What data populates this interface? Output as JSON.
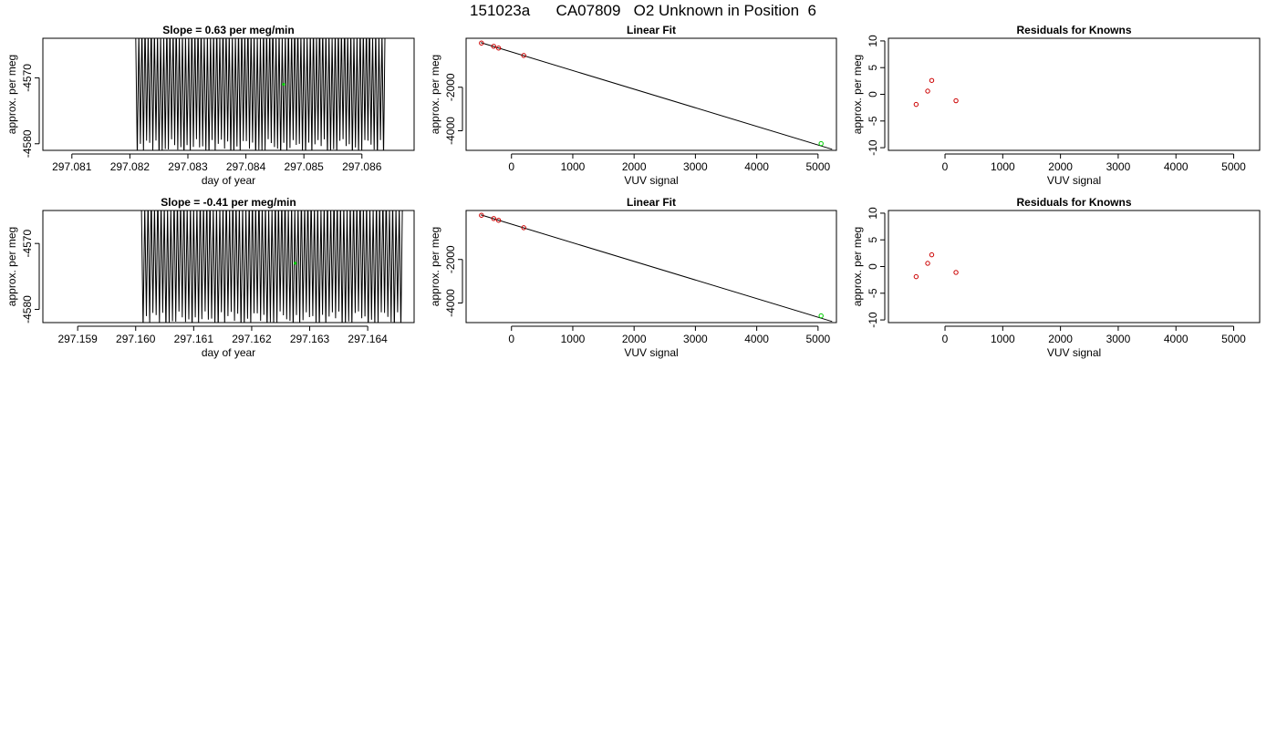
{
  "page_title": "151023a      CA07809   O2 Unknown in Position  6",
  "colors": {
    "axis": "#000000",
    "trace": "#000000",
    "known_points": "#cc0000",
    "unknown_point": "#00cc00",
    "fit_line": "#000000"
  },
  "chart_data": [
    {
      "type": "line",
      "title": "Slope =  0.63  per meg/min",
      "xlabel": "day of year",
      "ylabel": "approx. per meg",
      "xlim": [
        297.0805,
        297.0869
      ],
      "ylim": [
        -4581,
        -4564
      ],
      "x_ticks": [
        {
          "value": 297.081,
          "label": "297.081"
        },
        {
          "value": 297.082,
          "label": "297.082"
        },
        {
          "value": 297.083,
          "label": "297.083"
        },
        {
          "value": 297.084,
          "label": "297.084"
        },
        {
          "value": 297.085,
          "label": "297.085"
        },
        {
          "value": 297.086,
          "label": "297.086"
        }
      ],
      "y_ticks": [
        {
          "value": -4570,
          "label": "-4570"
        },
        {
          "value": -4580,
          "label": "-4580"
        }
      ],
      "trace": {
        "x_start": 297.0821,
        "x_end": 297.0864,
        "center": -4571.5,
        "amplitude": 9.5,
        "cycles": 80
      },
      "highlight_points": [
        {
          "x": 297.08465,
          "y": -4571.0
        }
      ]
    },
    {
      "type": "scatter",
      "title": "Linear Fit",
      "xlabel": "VUV signal",
      "ylabel": "approx. per meg",
      "xlim": [
        -740,
        5300
      ],
      "ylim": [
        -4900,
        250
      ],
      "x_ticks": [
        {
          "value": 0,
          "label": "0"
        },
        {
          "value": 1000,
          "label": "1000"
        },
        {
          "value": 2000,
          "label": "2000"
        },
        {
          "value": 3000,
          "label": "3000"
        },
        {
          "value": 4000,
          "label": "4000"
        },
        {
          "value": 5000,
          "label": "5000"
        }
      ],
      "y_ticks": [
        {
          "value": -2000,
          "label": "-2000"
        },
        {
          "value": -4000,
          "label": "-4000"
        }
      ],
      "fit_line": [
        [
          -500,
          50
        ],
        [
          5230,
          -4850
        ]
      ],
      "known_points": [
        {
          "x": -490,
          "y": 30
        },
        {
          "x": -290,
          "y": -120
        },
        {
          "x": -210,
          "y": -200
        },
        {
          "x": 200,
          "y": -540
        }
      ],
      "unknown_points": [
        {
          "x": 5050,
          "y": -4590
        }
      ]
    },
    {
      "type": "scatter",
      "title": "Residuals for Knowns",
      "xlabel": "VUV signal",
      "ylabel": "approx. per meg",
      "xlim": [
        -980,
        5450
      ],
      "ylim": [
        -10.5,
        10.5
      ],
      "x_ticks": [
        {
          "value": 0,
          "label": "0"
        },
        {
          "value": 1000,
          "label": "1000"
        },
        {
          "value": 2000,
          "label": "2000"
        },
        {
          "value": 3000,
          "label": "3000"
        },
        {
          "value": 4000,
          "label": "4000"
        },
        {
          "value": 5000,
          "label": "5000"
        }
      ],
      "y_ticks": [
        {
          "value": 10,
          "label": "10"
        },
        {
          "value": 5,
          "label": "5"
        },
        {
          "value": 0,
          "label": "0"
        },
        {
          "value": -5,
          "label": "-5"
        },
        {
          "value": -10,
          "label": "-10"
        }
      ],
      "known_points": [
        {
          "x": -500,
          "y": -1.9
        },
        {
          "x": -300,
          "y": 0.6
        },
        {
          "x": -230,
          "y": 2.6
        },
        {
          "x": 190,
          "y": -1.2
        }
      ]
    },
    {
      "type": "line",
      "title": "Slope =  -0.41  per meg/min",
      "xlabel": "day of year",
      "ylabel": "approx. per meg",
      "xlim": [
        297.1584,
        297.1648
      ],
      "ylim": [
        -4582,
        -4565
      ],
      "x_ticks": [
        {
          "value": 297.159,
          "label": "297.159"
        },
        {
          "value": 297.16,
          "label": "297.160"
        },
        {
          "value": 297.161,
          "label": "297.161"
        },
        {
          "value": 297.162,
          "label": "297.162"
        },
        {
          "value": 297.163,
          "label": "297.163"
        },
        {
          "value": 297.164,
          "label": "297.164"
        }
      ],
      "y_ticks": [
        {
          "value": -4570,
          "label": "-4570"
        },
        {
          "value": -4580,
          "label": "-4580"
        }
      ],
      "trace": {
        "x_start": 297.1601,
        "x_end": 297.1646,
        "center": -4572.5,
        "amplitude": 9.5,
        "cycles": 80
      },
      "highlight_points": [
        {
          "x": 297.16275,
          "y": -4573.0
        }
      ]
    },
    {
      "type": "scatter",
      "title": "Linear Fit",
      "xlabel": "VUV signal",
      "ylabel": "approx. per meg",
      "xlim": [
        -740,
        5300
      ],
      "ylim": [
        -4900,
        250
      ],
      "x_ticks": [
        {
          "value": 0,
          "label": "0"
        },
        {
          "value": 1000,
          "label": "1000"
        },
        {
          "value": 2000,
          "label": "2000"
        },
        {
          "value": 3000,
          "label": "3000"
        },
        {
          "value": 4000,
          "label": "4000"
        },
        {
          "value": 5000,
          "label": "5000"
        }
      ],
      "y_ticks": [
        {
          "value": -2000,
          "label": "-2000"
        },
        {
          "value": -4000,
          "label": "-4000"
        }
      ],
      "fit_line": [
        [
          -500,
          50
        ],
        [
          5230,
          -4850
        ]
      ],
      "known_points": [
        {
          "x": -490,
          "y": 30
        },
        {
          "x": -290,
          "y": -120
        },
        {
          "x": -210,
          "y": -200
        },
        {
          "x": 200,
          "y": -540
        }
      ],
      "unknown_points": [
        {
          "x": 5050,
          "y": -4590
        }
      ]
    },
    {
      "type": "scatter",
      "title": "Residuals for Knowns",
      "xlabel": "VUV signal",
      "ylabel": "approx. per meg",
      "xlim": [
        -980,
        5450
      ],
      "ylim": [
        -10.5,
        10.5
      ],
      "x_ticks": [
        {
          "value": 0,
          "label": "0"
        },
        {
          "value": 1000,
          "label": "1000"
        },
        {
          "value": 2000,
          "label": "2000"
        },
        {
          "value": 3000,
          "label": "3000"
        },
        {
          "value": 4000,
          "label": "4000"
        },
        {
          "value": 5000,
          "label": "5000"
        }
      ],
      "y_ticks": [
        {
          "value": 10,
          "label": "10"
        },
        {
          "value": 5,
          "label": "5"
        },
        {
          "value": 0,
          "label": "0"
        },
        {
          "value": -5,
          "label": "-5"
        },
        {
          "value": -10,
          "label": "-10"
        }
      ],
      "known_points": [
        {
          "x": -500,
          "y": -1.9
        },
        {
          "x": -300,
          "y": 0.6
        },
        {
          "x": -230,
          "y": 2.2
        },
        {
          "x": 190,
          "y": -1.1
        }
      ]
    }
  ]
}
